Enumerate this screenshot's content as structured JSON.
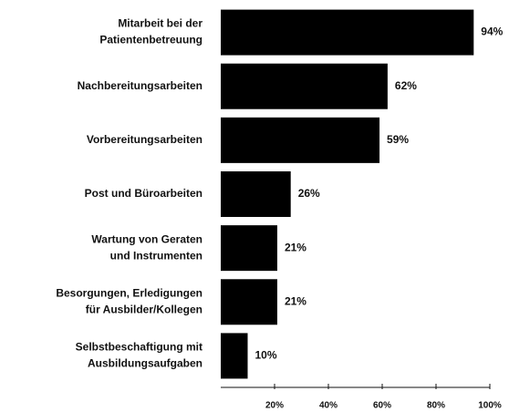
{
  "chart_data": {
    "type": "bar",
    "orientation": "horizontal",
    "categories": [
      [
        "Mitarbeit bei der",
        "Patientenbetreuung"
      ],
      [
        "Nachbereitungsarbeiten"
      ],
      [
        "Vorbereitungsarbeiten"
      ],
      [
        "Post  und Büroarbeiten"
      ],
      [
        "Wartung von Geraten",
        "und Instrumenten"
      ],
      [
        "Besorgungen, Erledigungen",
        "für Ausbilder/Kollegen"
      ],
      [
        "Selbstbeschaftigung mit",
        "Ausbildungsaufgaben"
      ]
    ],
    "values": [
      94,
      62,
      59,
      26,
      21,
      21,
      10
    ],
    "value_labels": [
      "94%",
      "62%",
      "59%",
      "26%",
      "21%",
      "21%",
      "10%"
    ],
    "color": "#000000",
    "xlim": [
      0,
      100
    ],
    "xticks": [
      {
        "value": 20,
        "label": "20%"
      },
      {
        "value": 40,
        "label": "40%"
      },
      {
        "value": 60,
        "label": "60%"
      },
      {
        "value": 80,
        "label": "80%"
      },
      {
        "value": 100,
        "label": "100%"
      }
    ],
    "grid": false
  }
}
